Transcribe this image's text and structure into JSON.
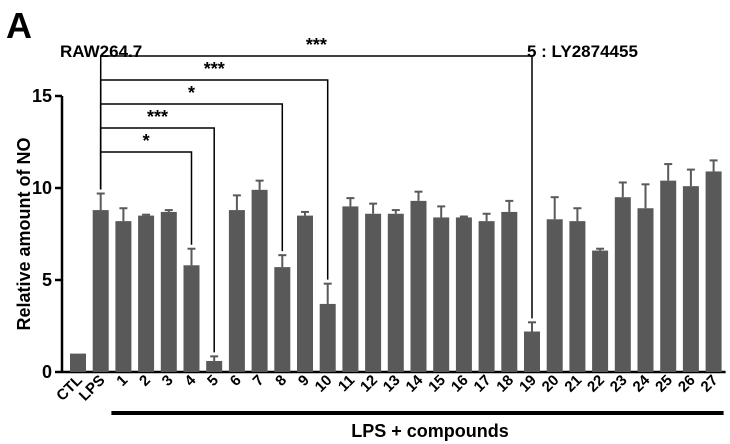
{
  "panel_label": "A",
  "cell_line": "RAW264.7",
  "compound_note": "5 : LY2874455",
  "chart_data": {
    "type": "bar",
    "ylabel": "Relative amount of NO",
    "xgroup_label": "LPS + compounds",
    "ylim": [
      0,
      15
    ],
    "yticks": [
      0,
      5,
      10,
      15
    ],
    "grid": false,
    "categories": [
      "CTL",
      "LPS",
      "1",
      "2",
      "3",
      "4",
      "5",
      "6",
      "7",
      "8",
      "9",
      "10",
      "11",
      "12",
      "13",
      "14",
      "15",
      "16",
      "17",
      "18",
      "19",
      "20",
      "21",
      "22",
      "23",
      "24",
      "25",
      "26",
      "27"
    ],
    "values": [
      1.0,
      8.8,
      8.2,
      8.5,
      8.7,
      5.8,
      0.6,
      8.8,
      9.9,
      5.7,
      8.5,
      3.7,
      9.0,
      8.6,
      8.6,
      9.3,
      8.4,
      8.4,
      8.2,
      8.7,
      2.2,
      8.3,
      8.2,
      6.6,
      9.5,
      8.9,
      10.4,
      10.1,
      10.9
    ],
    "errors": [
      0.0,
      0.9,
      0.7,
      0.05,
      0.1,
      0.9,
      0.25,
      0.8,
      0.5,
      0.65,
      0.2,
      1.1,
      0.45,
      0.55,
      0.2,
      0.5,
      0.6,
      0.05,
      0.4,
      0.6,
      0.5,
      1.2,
      0.7,
      0.1,
      0.8,
      1.3,
      0.9,
      0.9,
      0.6
    ],
    "bar_color": "#595959",
    "significance": [
      {
        "from": "LPS",
        "to": "4",
        "label": "*"
      },
      {
        "from": "LPS",
        "to": "5",
        "label": "***"
      },
      {
        "from": "LPS",
        "to": "8",
        "label": "*"
      },
      {
        "from": "LPS",
        "to": "10",
        "label": "***"
      },
      {
        "from": "LPS",
        "to": "19",
        "label": "***"
      }
    ]
  }
}
